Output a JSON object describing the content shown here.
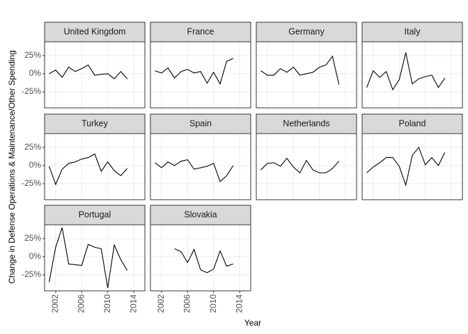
{
  "chart_data": {
    "type": "line",
    "color": "#000000",
    "x_label": "Year",
    "y_label": "Change in Defense Operations & Maintenance/Other Spending",
    "xlim": [
      2000.3,
      2015.7
    ],
    "xticks": [
      2002,
      2006,
      2010,
      2014
    ],
    "ylim": [
      -47,
      44
    ],
    "yticks": [
      {
        "value": -25,
        "label": "-25%"
      },
      {
        "value": 0,
        "label": "0%"
      },
      {
        "value": 25,
        "label": "25%"
      }
    ],
    "grid": true,
    "panels": [
      {
        "title": "United Kingdom",
        "x": [
          2001,
          2002,
          2003,
          2004,
          2005,
          2006,
          2007,
          2008,
          2009,
          2010,
          2011,
          2012,
          2013
        ],
        "values": [
          0,
          5,
          -5,
          9,
          3,
          7,
          12,
          -2,
          -1,
          0,
          -7,
          3,
          -7
        ]
      },
      {
        "title": "France",
        "x": [
          2001,
          2002,
          2003,
          2004,
          2005,
          2006,
          2007,
          2008,
          2009,
          2010,
          2011,
          2012,
          2013
        ],
        "values": [
          4,
          1,
          8,
          -6,
          3,
          6,
          1,
          3,
          -13,
          2,
          -14,
          17,
          21
        ]
      },
      {
        "title": "Germany",
        "x": [
          2001,
          2002,
          2003,
          2004,
          2005,
          2006,
          2007,
          2008,
          2009,
          2010,
          2011,
          2012,
          2013
        ],
        "values": [
          4,
          -2,
          -2,
          7,
          2,
          9,
          -2,
          0,
          2,
          9,
          12,
          24,
          -15
        ]
      },
      {
        "title": "Italy",
        "x": [
          2001,
          2002,
          2003,
          2004,
          2005,
          2006,
          2007,
          2008,
          2009,
          2010,
          2011,
          2012,
          2013
        ],
        "values": [
          -19,
          4,
          -5,
          3,
          -22,
          -8,
          29,
          -14,
          -7,
          -4,
          -2,
          -19,
          -6
        ]
      },
      {
        "title": "Turkey",
        "x": [
          2001,
          2002,
          2003,
          2004,
          2005,
          2006,
          2007,
          2008,
          2009,
          2010,
          2011,
          2012,
          2013
        ],
        "values": [
          -1,
          -26,
          -5,
          3,
          5,
          9,
          11,
          16,
          -8,
          5,
          -7,
          -14,
          -4
        ]
      },
      {
        "title": "Spain",
        "x": [
          2001,
          2002,
          2003,
          2004,
          2005,
          2006,
          2007,
          2008,
          2009,
          2010,
          2011,
          2012,
          2013
        ],
        "values": [
          4,
          -3,
          5,
          0,
          6,
          8,
          -5,
          -3,
          -1,
          3,
          -22,
          -14,
          0
        ]
      },
      {
        "title": "Netherlands",
        "x": [
          2001,
          2002,
          2003,
          2004,
          2005,
          2006,
          2007,
          2008,
          2009,
          2010,
          2011,
          2012,
          2013
        ],
        "values": [
          -6,
          3,
          4,
          -1,
          10,
          -2,
          -10,
          7,
          -6,
          -10,
          -10,
          -4,
          6
        ]
      },
      {
        "title": "Poland",
        "x": [
          2001,
          2002,
          2003,
          2004,
          2005,
          2006,
          2007,
          2008,
          2009,
          2010,
          2011,
          2012,
          2013
        ],
        "values": [
          -10,
          -2,
          4,
          11,
          11,
          -1,
          -27,
          14,
          25,
          1,
          11,
          0,
          18
        ]
      },
      {
        "title": "Portugal",
        "x": [
          2001,
          2002,
          2003,
          2004,
          2005,
          2006,
          2007,
          2008,
          2009,
          2010,
          2011,
          2012,
          2013
        ],
        "values": [
          -35,
          13,
          40,
          -10,
          -11,
          -12,
          17,
          13,
          11,
          -43,
          16,
          -4,
          -19
        ]
      },
      {
        "title": "Slovakia",
        "x": [
          2004,
          2005,
          2006,
          2007,
          2008,
          2009,
          2010,
          2011,
          2012,
          2013
        ],
        "values": [
          11,
          7,
          -8,
          10,
          -18,
          -22,
          -17,
          8,
          -13,
          -10
        ]
      }
    ]
  }
}
